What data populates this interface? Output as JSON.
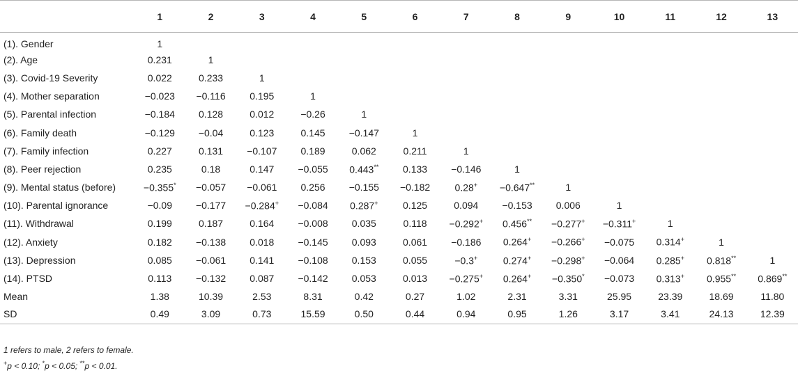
{
  "table": {
    "column_headers": [
      "",
      "1",
      "2",
      "3",
      "4",
      "5",
      "6",
      "7",
      "8",
      "9",
      "10",
      "11",
      "12",
      "13"
    ],
    "rows": [
      {
        "label": "(1). Gender",
        "cells": [
          "1",
          "",
          "",
          "",
          "",
          "",
          "",
          "",
          "",
          "",
          "",
          "",
          ""
        ]
      },
      {
        "label": "(2). Age",
        "cells": [
          "0.231",
          "1",
          "",
          "",
          "",
          "",
          "",
          "",
          "",
          "",
          "",
          "",
          ""
        ]
      },
      {
        "label": "(3). Covid-19 Severity",
        "cells": [
          "0.022",
          "0.233",
          "1",
          "",
          "",
          "",
          "",
          "",
          "",
          "",
          "",
          "",
          ""
        ]
      },
      {
        "label": "(4). Mother separation",
        "cells": [
          "−0.023",
          "−0.116",
          "0.195",
          "1",
          "",
          "",
          "",
          "",
          "",
          "",
          "",
          "",
          ""
        ]
      },
      {
        "label": "(5). Parental infection",
        "cells": [
          "−0.184",
          "0.128",
          "0.012",
          "−0.26",
          "1",
          "",
          "",
          "",
          "",
          "",
          "",
          "",
          ""
        ]
      },
      {
        "label": "(6). Family death",
        "cells": [
          "−0.129",
          "−0.04",
          "0.123",
          "0.145",
          "−0.147",
          "1",
          "",
          "",
          "",
          "",
          "",
          "",
          ""
        ]
      },
      {
        "label": "(7). Family infection",
        "cells": [
          "0.227",
          "0.131",
          "−0.107",
          "0.189",
          "0.062",
          "0.211",
          "1",
          "",
          "",
          "",
          "",
          "",
          ""
        ]
      },
      {
        "label": "(8). Peer rejection",
        "cells": [
          "0.235",
          "0.18",
          "0.147",
          "−0.055",
          "0.443**",
          "0.133",
          "−0.146",
          "1",
          "",
          "",
          "",
          "",
          ""
        ]
      },
      {
        "label": "(9). Mental status (before)",
        "cells": [
          "−0.355*",
          "−0.057",
          "−0.061",
          "0.256",
          "−0.155",
          "−0.182",
          "0.28+",
          "−0.647**",
          "1",
          "",
          "",
          "",
          ""
        ]
      },
      {
        "label": "(10). Parental ignorance",
        "cells": [
          "−0.09",
          "−0.177",
          "−0.284+",
          "−0.084",
          "0.287+",
          "0.125",
          "0.094",
          "−0.153",
          "0.006",
          "1",
          "",
          "",
          ""
        ]
      },
      {
        "label": "(11). Withdrawal",
        "cells": [
          "0.199",
          "0.187",
          "0.164",
          "−0.008",
          "0.035",
          "0.118",
          "−0.292+",
          "0.456**",
          "−0.277+",
          "−0.311+",
          "1",
          "",
          ""
        ]
      },
      {
        "label": "(12). Anxiety",
        "cells": [
          "0.182",
          "−0.138",
          "0.018",
          "−0.145",
          "0.093",
          "0.061",
          "−0.186",
          "0.264+",
          "−0.266+",
          "−0.075",
          "0.314+",
          "1",
          ""
        ]
      },
      {
        "label": "(13). Depression",
        "cells": [
          "0.085",
          "−0.061",
          "0.141",
          "−0.108",
          "0.153",
          "0.055",
          "−0.3+",
          "0.274+",
          "−0.298+",
          "−0.064",
          "0.285+",
          "0.818**",
          "1"
        ]
      },
      {
        "label": "(14). PTSD",
        "cells": [
          "0.113",
          "−0.132",
          "0.087",
          "−0.142",
          "0.053",
          "0.013",
          "−0.275+",
          "0.264+",
          "−0.350*",
          "−0.073",
          "0.313+",
          "0.955**",
          "0.869**"
        ]
      },
      {
        "label": "Mean",
        "cells": [
          "1.38",
          "10.39",
          "2.53",
          "8.31",
          "0.42",
          "0.27",
          "1.02",
          "2.31",
          "3.31",
          "25.95",
          "23.39",
          "18.69",
          "11.80"
        ]
      },
      {
        "label": "SD",
        "cells": [
          "0.49",
          "3.09",
          "0.73",
          "15.59",
          "0.50",
          "0.44",
          "0.94",
          "0.95",
          "1.26",
          "3.17",
          "3.41",
          "24.13",
          "12.39"
        ]
      }
    ]
  },
  "notes": {
    "line1": "1 refers to male, 2 refers to female.",
    "sig_plus_mark": "+",
    "sig_plus_text": "p < 0.10; ",
    "sig_one_mark": "*",
    "sig_one_text": "p < 0.05; ",
    "sig_two_mark": "**",
    "sig_two_text": "p < 0.01."
  }
}
